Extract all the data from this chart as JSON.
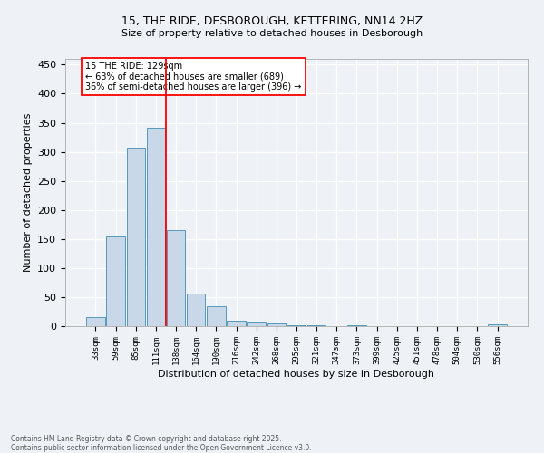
{
  "title1": "15, THE RIDE, DESBOROUGH, KETTERING, NN14 2HZ",
  "title2": "Size of property relative to detached houses in Desborough",
  "xlabel": "Distribution of detached houses by size in Desborough",
  "ylabel": "Number of detached properties",
  "bar_color": "#c8d8e8",
  "bar_edge_color": "#5599bb",
  "categories": [
    "33sqm",
    "59sqm",
    "85sqm",
    "111sqm",
    "138sqm",
    "164sqm",
    "190sqm",
    "216sqm",
    "242sqm",
    "268sqm",
    "295sqm",
    "321sqm",
    "347sqm",
    "373sqm",
    "399sqm",
    "425sqm",
    "451sqm",
    "478sqm",
    "504sqm",
    "530sqm",
    "556sqm"
  ],
  "values": [
    15,
    155,
    307,
    342,
    166,
    56,
    35,
    9,
    8,
    4,
    2,
    1,
    0,
    1,
    0,
    0,
    0,
    0,
    0,
    0,
    3
  ],
  "ylim": [
    0,
    460
  ],
  "yticks": [
    0,
    50,
    100,
    150,
    200,
    250,
    300,
    350,
    400,
    450
  ],
  "red_line_x": 3.5,
  "annotation_text": "15 THE RIDE: 129sqm\n← 63% of detached houses are smaller (689)\n36% of semi-detached houses are larger (396) →",
  "footer1": "Contains HM Land Registry data © Crown copyright and database right 2025.",
  "footer2": "Contains public sector information licensed under the Open Government Licence v3.0.",
  "bg_color": "#eef2f6",
  "grid_color": "#ffffff"
}
